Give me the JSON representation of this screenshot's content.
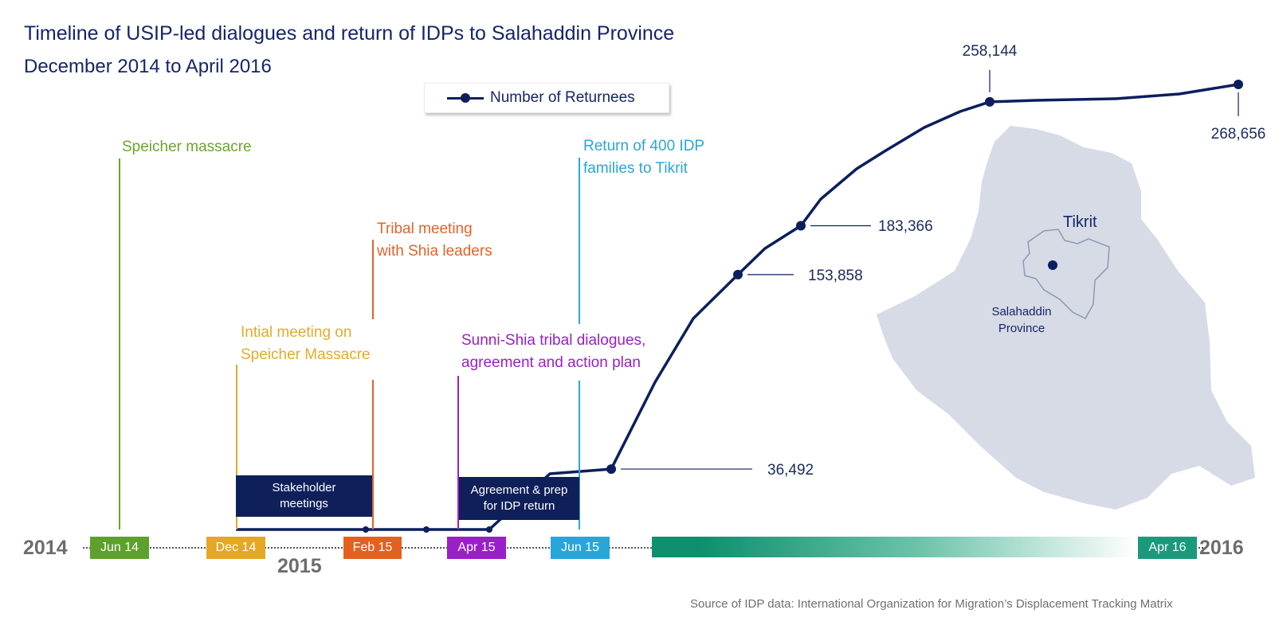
{
  "header": {
    "title": "Timeline of USIP-led dialogues and return of IDPs to Salahaddin Province",
    "subtitle": "December 2014 to April 2016"
  },
  "legend": {
    "label": "Number of Returnees"
  },
  "events": [
    {
      "id": "speicher",
      "text": [
        "Speicher massacre"
      ],
      "color": "#6aa52c"
    },
    {
      "id": "initial",
      "text": [
        "Intial meeting on",
        "Speicher Massacre"
      ],
      "color": "#e4ab2b"
    },
    {
      "id": "tribal",
      "text": [
        "Tribal meeting",
        "with Shia leaders"
      ],
      "color": "#e2632a"
    },
    {
      "id": "sunni",
      "text": [
        "Sunni-Shia tribal dialogues,",
        "agreement and action plan"
      ],
      "color": "#9a1fc9"
    },
    {
      "id": "return",
      "text": [
        "Return of 400 IDP",
        "families to Tikrit"
      ],
      "color": "#2aa6da"
    }
  ],
  "boxes": [
    {
      "id": "stakeholder",
      "text": [
        "Stakeholder",
        "meetings"
      ]
    },
    {
      "id": "agreement",
      "text": [
        "Agreement & prep",
        "for IDP return"
      ]
    }
  ],
  "timeline": {
    "tags": [
      {
        "label": "Jun 14",
        "color": "#5da12c"
      },
      {
        "label": "Dec 14",
        "color": "#e4a825"
      },
      {
        "label": "Feb 15",
        "color": "#e5601f"
      },
      {
        "label": "Apr 15",
        "color": "#9a1fc9"
      },
      {
        "label": "Jun 15",
        "color": "#27a6dc"
      },
      {
        "label": "Apr 16",
        "color": "#1a9a7b"
      }
    ],
    "years": {
      "start": "2014",
      "mid": "2015",
      "end": "2016"
    }
  },
  "chart_data": {
    "type": "line",
    "title": "Timeline of USIP-led dialogues and return of IDPs to Salahaddin Province",
    "subtitle": "December 2014 to April 2016",
    "series": [
      {
        "name": "Number of Returnees",
        "labeled_points": [
          36492,
          153858,
          183366,
          258144,
          268656
        ]
      }
    ],
    "data_labels": [
      "36,492",
      "153,858",
      "183,366",
      "258,144",
      "268,656"
    ]
  },
  "map": {
    "city": "Tikrit",
    "province": [
      "Salahaddin",
      "Province"
    ],
    "fill": "#d7dbe6"
  },
  "source": "Source of IDP data: International Organization for Migration’s Displacement Tracking Matrix"
}
